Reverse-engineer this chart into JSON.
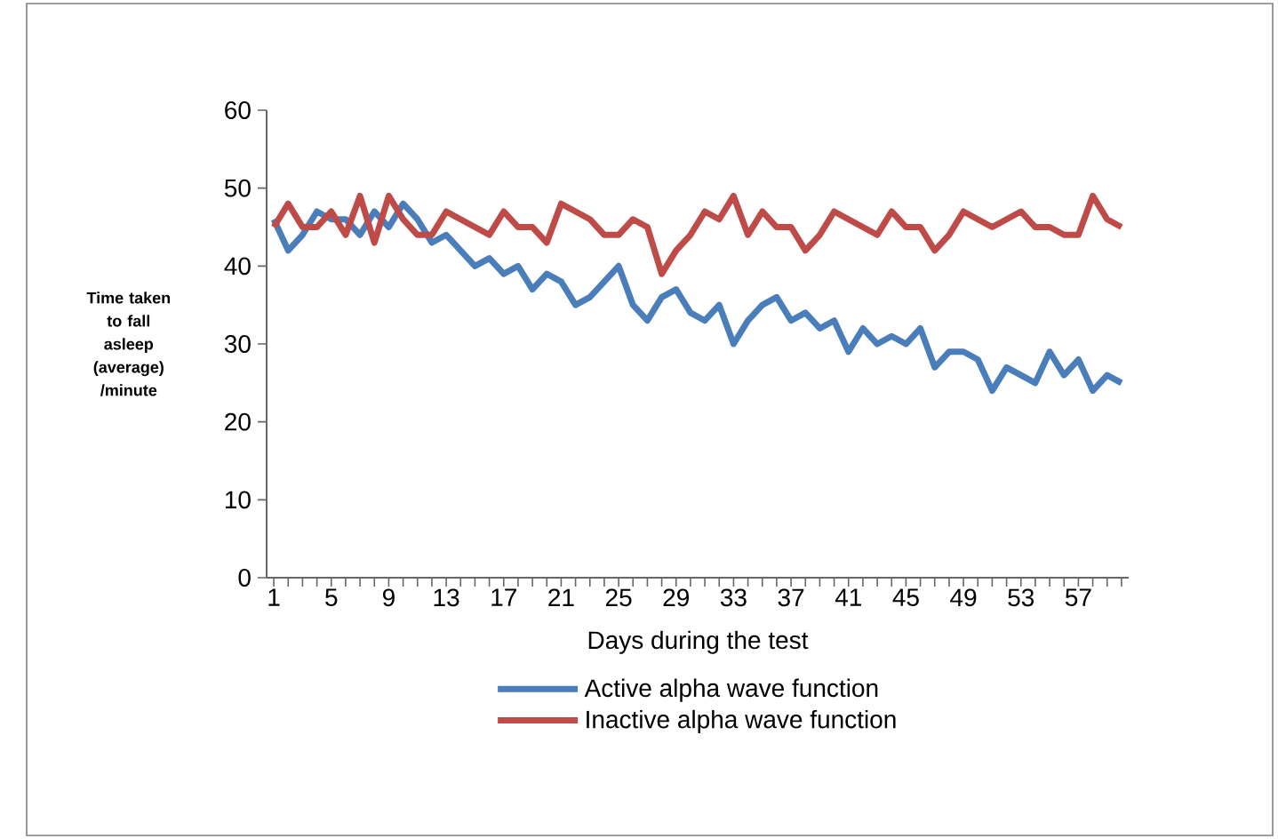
{
  "chart_data": {
    "type": "line",
    "xlabel": "Days during the test",
    "ylabel": "Time taken to fall asleep (average) /minute",
    "categories": [
      "1",
      null,
      null,
      null,
      "5",
      null,
      null,
      null,
      "9",
      null,
      null,
      null,
      "13",
      null,
      null,
      null,
      "17",
      null,
      null,
      null,
      "21",
      null,
      null,
      null,
      "25",
      null,
      null,
      null,
      "29",
      null,
      null,
      null,
      "33",
      null,
      null,
      null,
      "37",
      null,
      null,
      null,
      "41",
      null,
      null,
      null,
      "45",
      null,
      null,
      null,
      "49",
      null,
      null,
      null,
      "53",
      null,
      null,
      null,
      "57",
      null,
      null,
      null
    ],
    "series": [
      {
        "name": "Active alpha wave function",
        "color": "#4a7ebb",
        "values": [
          46,
          42,
          44,
          47,
          46,
          46,
          44,
          47,
          45,
          48,
          46,
          43,
          44,
          42,
          40,
          41,
          39,
          40,
          37,
          39,
          38,
          35,
          36,
          38,
          40,
          35,
          33,
          36,
          37,
          34,
          33,
          35,
          30,
          33,
          35,
          36,
          33,
          34,
          32,
          33,
          29,
          32,
          30,
          31,
          30,
          32,
          27,
          29,
          29,
          28,
          24,
          27,
          26,
          25,
          29,
          26,
          28,
          24,
          26,
          25
        ]
      },
      {
        "name": "Inactive alpha wave function",
        "color": "#be4b48",
        "values": [
          45,
          48,
          45,
          45,
          47,
          44,
          49,
          43,
          49,
          46,
          44,
          44,
          47,
          46,
          45,
          44,
          47,
          45,
          45,
          43,
          48,
          47,
          46,
          44,
          44,
          46,
          45,
          39,
          42,
          44,
          47,
          46,
          49,
          44,
          47,
          45,
          45,
          42,
          44,
          47,
          46,
          45,
          44,
          47,
          45,
          45,
          42,
          44,
          47,
          46,
          45,
          46,
          47,
          45,
          45,
          44,
          44,
          49,
          46,
          45
        ]
      }
    ],
    "ylim": [
      0,
      60
    ],
    "yticks": [
      0,
      10,
      20,
      30,
      40,
      50,
      60
    ],
    "legend": "bottom"
  }
}
